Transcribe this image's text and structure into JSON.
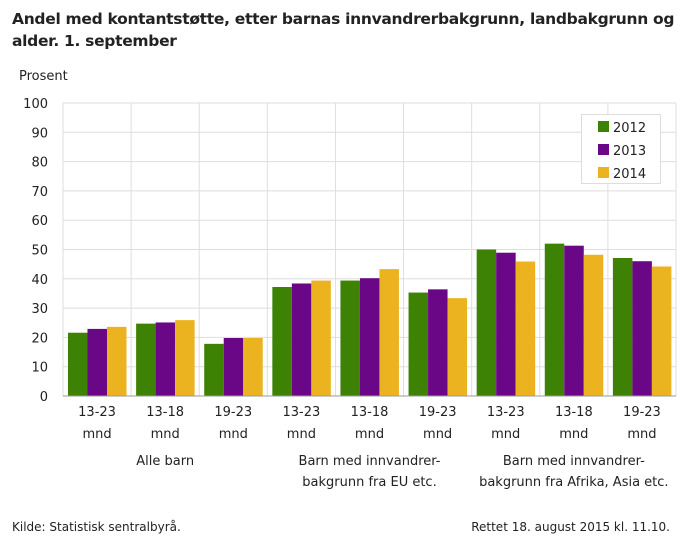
{
  "title": "Andel med kontantstøtte, etter barnas innvandrerbakgrunn, landbakgrunn og alder. 1. september",
  "source": "Kilde: Statistisk sentralbyrå.",
  "updated": "Rettet 18. august 2015 kl. 11.10.",
  "colors": {
    "2012": "#3d8204",
    "2013": "#6a0787",
    "2014": "#ebb31f"
  },
  "chart_data": {
    "type": "bar",
    "title": "Andel med kontantstøtte, etter barnas innvandrerbakgrunn, landbakgrunn og alder. 1. september",
    "ylabel": "Prosent",
    "ylim": [
      0,
      100
    ],
    "yticks": [
      0,
      10,
      20,
      30,
      40,
      50,
      60,
      70,
      80,
      90,
      100
    ],
    "grid": true,
    "legend": "top-right",
    "categories": [
      "13-23 mnd",
      "13-18 mnd",
      "19-23 mnd",
      "13-23 mnd",
      "13-18 mnd",
      "19-23 mnd",
      "13-23 mnd",
      "13-18 mnd",
      "19-23 mnd"
    ],
    "groups": [
      {
        "label": "Alle barn",
        "span": [
          0,
          2
        ]
      },
      {
        "label": "Barn med innvandrer-\nbakgrunn fra EU etc.",
        "span": [
          3,
          5
        ]
      },
      {
        "label": "Barn med innvandrer-\nbakgrunn fra Afrika, Asia etc.",
        "span": [
          6,
          8
        ]
      }
    ],
    "series": [
      {
        "name": "2012",
        "values": [
          21.6,
          24.7,
          17.8,
          37.2,
          39.4,
          35.3,
          50.0,
          52.0,
          47.1
        ]
      },
      {
        "name": "2013",
        "values": [
          22.9,
          25.1,
          19.8,
          38.4,
          40.2,
          36.4,
          48.9,
          51.3,
          46.0
        ]
      },
      {
        "name": "2014",
        "values": [
          23.6,
          25.9,
          19.8,
          39.4,
          43.3,
          33.4,
          45.9,
          48.2,
          44.2
        ]
      }
    ]
  }
}
